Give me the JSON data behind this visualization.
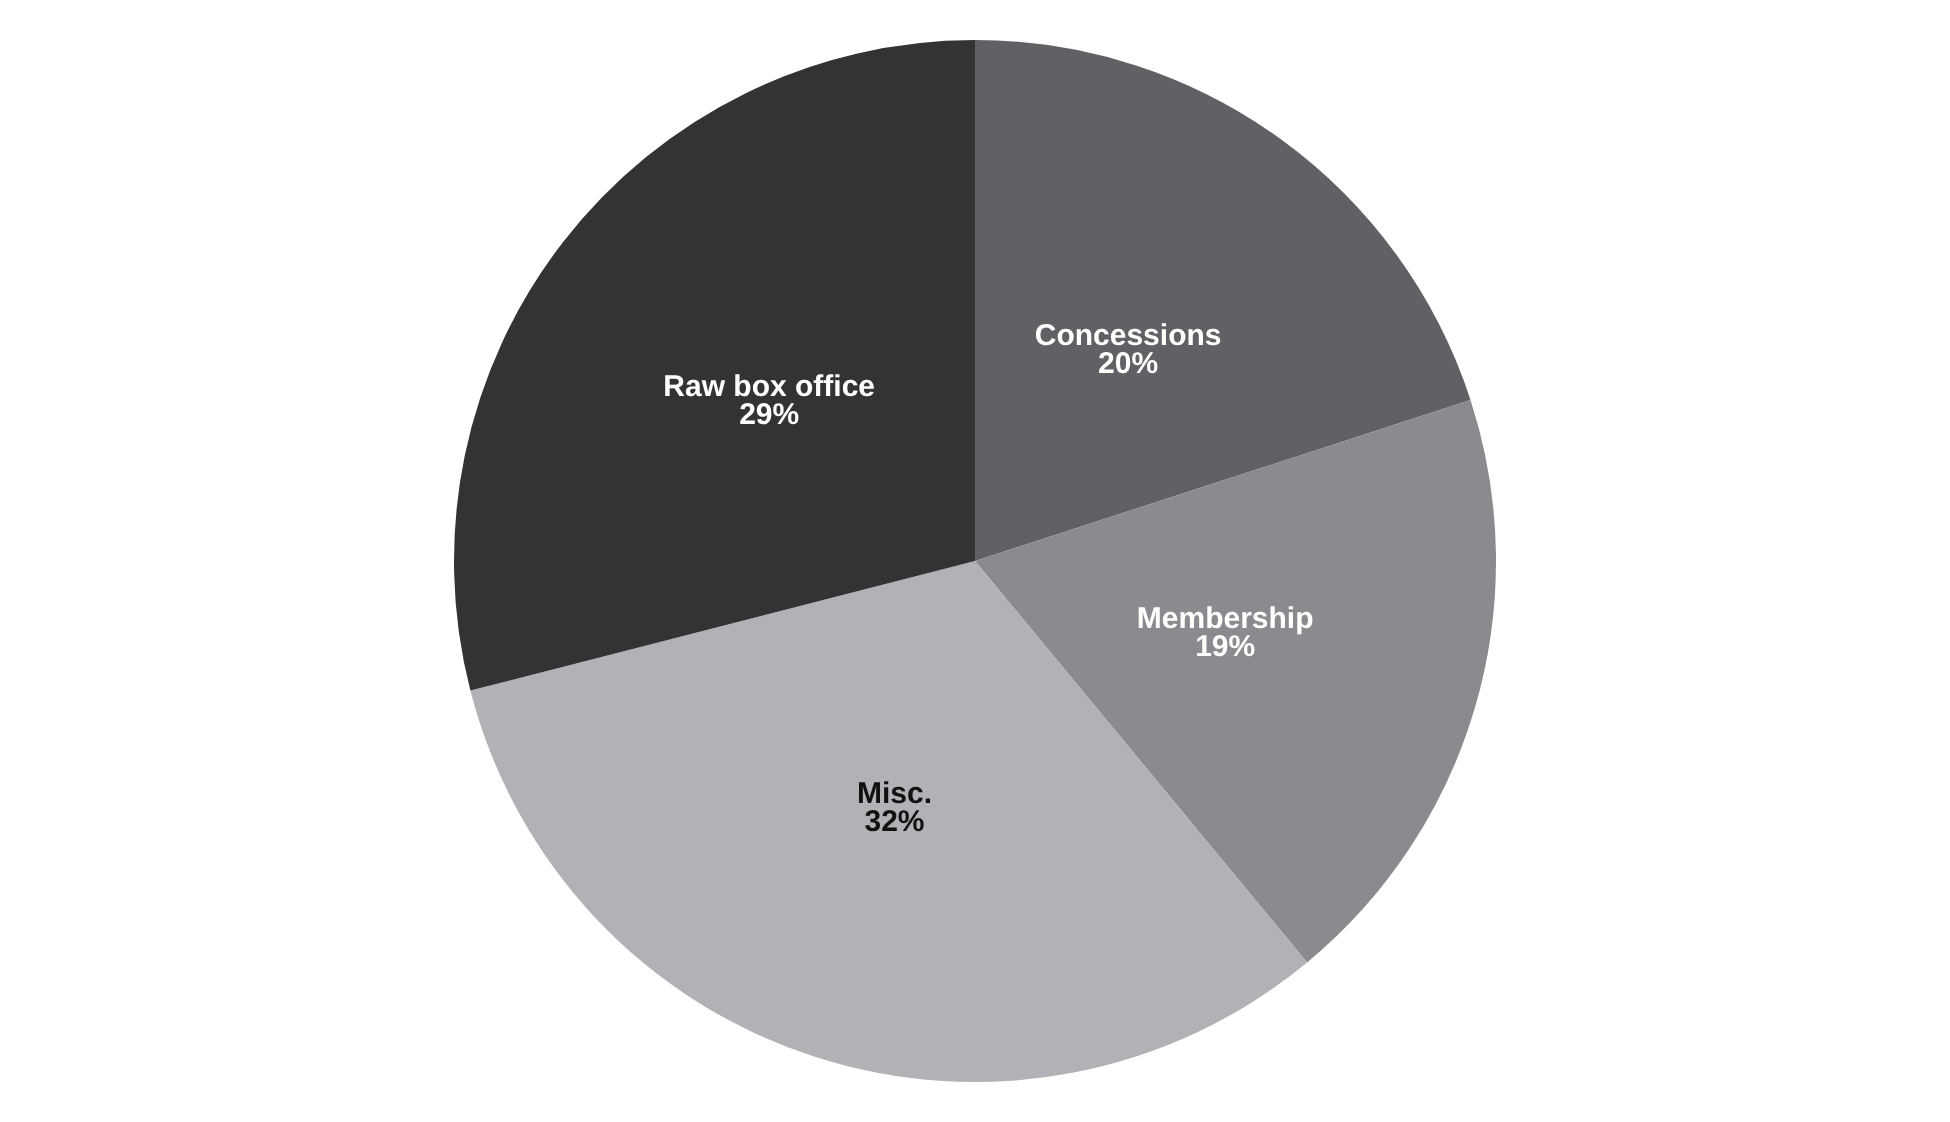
{
  "chart_data": {
    "type": "pie",
    "categories": [
      "Concessions",
      "Membership",
      "Misc.",
      "Raw box office"
    ],
    "values": [
      20,
      19,
      32,
      29
    ],
    "value_labels": [
      "20%",
      "19%",
      "32%",
      "29%"
    ],
    "colors": [
      "#5f6165",
      "#898b8e",
      "#b0b2b6",
      "#323335"
    ],
    "legend": false
  }
}
